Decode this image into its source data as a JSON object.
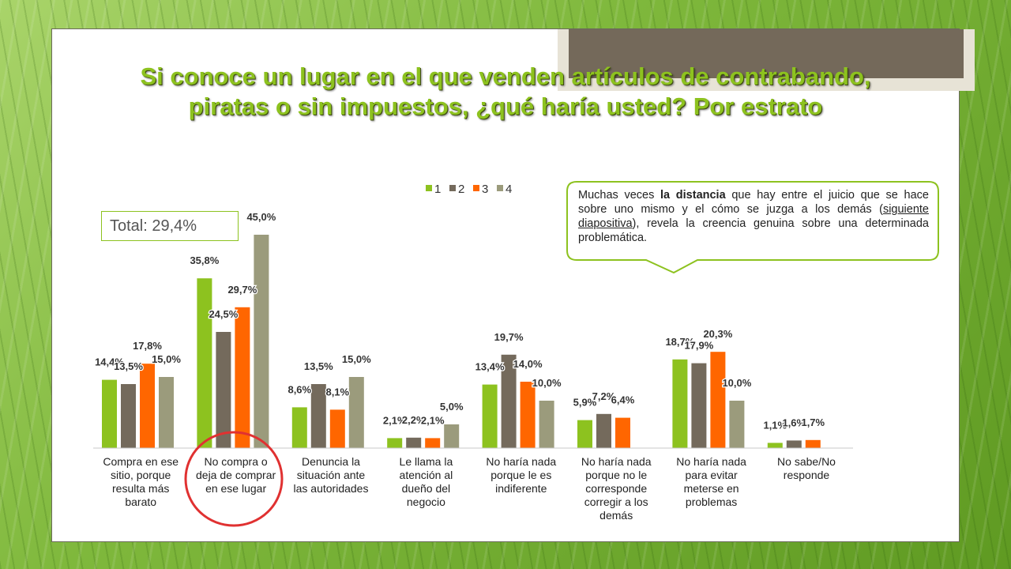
{
  "title": {
    "line1": "Si conoce un lugar en el que venden artículos de contrabando,",
    "line2": "piratas o sin impuestos, ¿qué haría usted? Por estrato"
  },
  "total_box": {
    "text": "Total: 29,4%"
  },
  "callout": {
    "part1": "Muchas veces ",
    "bold": "la distancia",
    "part2": " que hay entre el juicio que se hace sobre uno mismo y el cómo se juzga a los demás (",
    "underline": "siguiente diapositiva",
    "part3": "), revela la creencia genuina sobre una determinada problemática."
  },
  "highlight": {
    "shape": "circle",
    "color": "#e03131",
    "target_category": "No compra o deja de comprar en ese lugar"
  },
  "chart_data": {
    "type": "bar",
    "title": "",
    "xlabel": "",
    "ylabel": "",
    "ylim": [
      0,
      45
    ],
    "grid": false,
    "legend_position": "top",
    "categories": [
      [
        "Compra en ese",
        "sitio, porque",
        "resulta más",
        "barato"
      ],
      [
        "No compra o",
        "deja de comprar",
        "en ese lugar"
      ],
      [
        "Denuncia la",
        "situación ante",
        "las autoridades"
      ],
      [
        "Le llama la",
        "atención al",
        "dueño del",
        "negocio"
      ],
      [
        "No haría nada",
        "porque le es",
        "indiferente"
      ],
      [
        "No haría nada",
        "porque no le",
        "corresponde",
        "corregir a los",
        "demás"
      ],
      [
        "No haría nada",
        "para evitar",
        "meterse en",
        "problemas"
      ],
      [
        "No sabe/No",
        "responde"
      ]
    ],
    "series": [
      {
        "name": "1",
        "color": "#8dc21f",
        "values": [
          14.4,
          35.8,
          8.6,
          2.1,
          13.4,
          5.9,
          18.7,
          1.1
        ],
        "labels": [
          "14,4%",
          "35,8%",
          "8,6%",
          "2,1%",
          "13,4%",
          "5,9%",
          "18,7%",
          "1,1%"
        ]
      },
      {
        "name": "2",
        "color": "#746a5c",
        "values": [
          13.5,
          24.5,
          13.5,
          2.2,
          19.7,
          7.2,
          17.9,
          1.6
        ],
        "labels": [
          "13,5%",
          "24,5%",
          "13,5%",
          "2,2%",
          "19,7%",
          "7,2%",
          "17,9%",
          "1,6%"
        ]
      },
      {
        "name": "3",
        "color": "#ff6600",
        "values": [
          17.8,
          29.7,
          8.1,
          2.1,
          14.0,
          6.4,
          20.3,
          1.7
        ],
        "labels": [
          "17,8%",
          "29,7%",
          "8,1%",
          "2,1%",
          "14,0%",
          "6,4%",
          "20,3%",
          "1,7%"
        ]
      },
      {
        "name": "4",
        "color": "#9b9b7c",
        "values": [
          15.0,
          45.0,
          15.0,
          5.0,
          10.0,
          0,
          10.0,
          0
        ],
        "labels": [
          "15,0%",
          "45,0%",
          "15,0%",
          "5,0%",
          "10,0%",
          "",
          "10,0%",
          ""
        ]
      }
    ]
  }
}
